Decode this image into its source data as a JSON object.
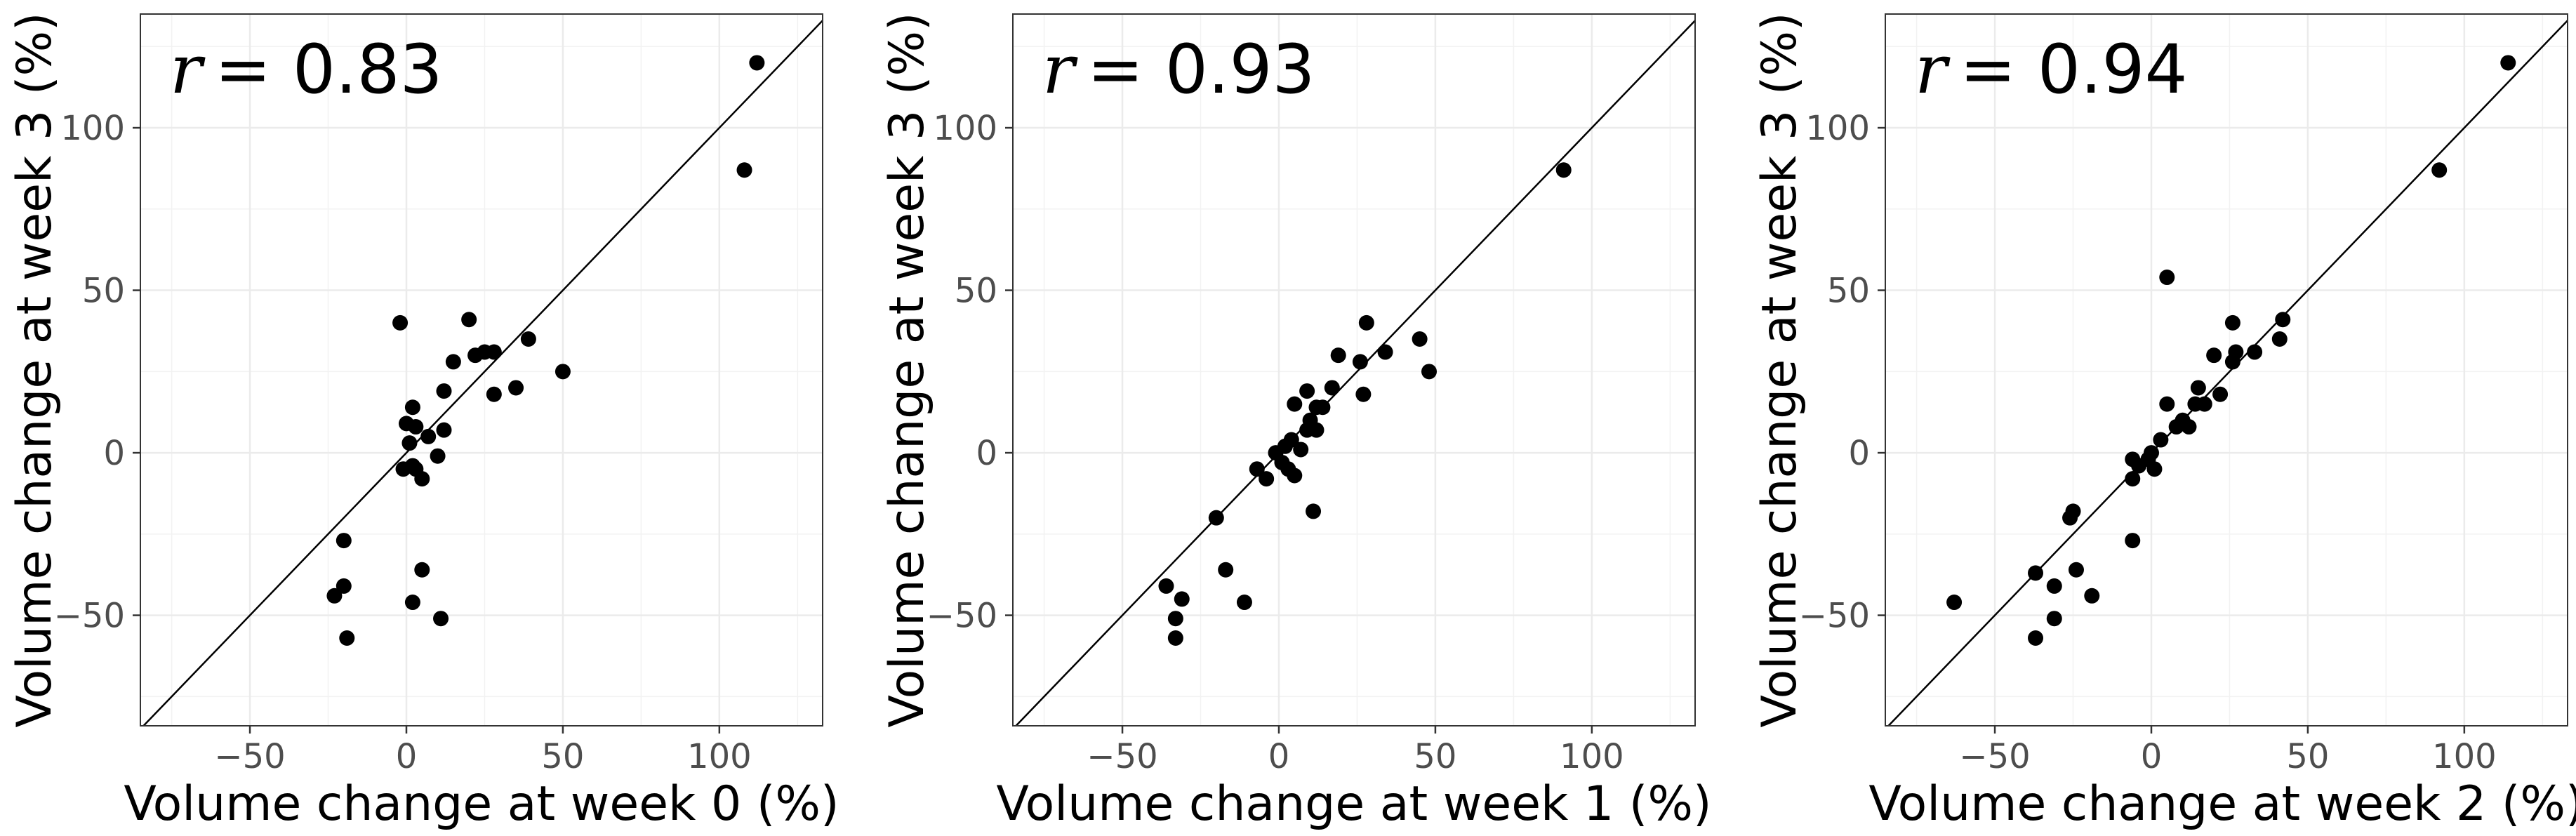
{
  "chart_data": [
    {
      "type": "scatter",
      "xlabel": "Volume change at week 0 (%)",
      "ylabel": "Volume change at week 3 (%)",
      "annotation_symbol": "r",
      "annotation_value": "= 0.83",
      "xlim": [
        -85,
        133
      ],
      "ylim": [
        -84,
        135
      ],
      "xticks": [
        -50,
        0,
        50,
        100
      ],
      "yticks": [
        -50,
        0,
        50,
        100
      ],
      "xtick_labels": [
        "−50",
        "0",
        "50",
        "100"
      ],
      "ytick_labels": [
        "−50",
        "0",
        "50",
        "100"
      ],
      "identity_line": true,
      "grid": true,
      "points": [
        [
          112,
          120
        ],
        [
          108,
          87
        ],
        [
          -2,
          40
        ],
        [
          20,
          41
        ],
        [
          22,
          30
        ],
        [
          25,
          31
        ],
        [
          15,
          28
        ],
        [
          28,
          31
        ],
        [
          39,
          35
        ],
        [
          35,
          20
        ],
        [
          28,
          18
        ],
        [
          50,
          25
        ],
        [
          12,
          19
        ],
        [
          2,
          14
        ],
        [
          12,
          7
        ],
        [
          3,
          8
        ],
        [
          7,
          5
        ],
        [
          10,
          -1
        ],
        [
          0,
          9
        ],
        [
          1,
          3
        ],
        [
          -1,
          -5
        ],
        [
          2,
          -4
        ],
        [
          3,
          -5
        ],
        [
          5,
          -8
        ],
        [
          -20,
          -27
        ],
        [
          -20,
          -41
        ],
        [
          -23,
          -44
        ],
        [
          -19,
          -57
        ],
        [
          5,
          -36
        ],
        [
          2,
          -46
        ],
        [
          11,
          -51
        ]
      ]
    },
    {
      "type": "scatter",
      "xlabel": "Volume change at week 1 (%)",
      "ylabel": "Volume change at week 3 (%)",
      "annotation_symbol": "r",
      "annotation_value": "= 0.93",
      "xlim": [
        -85,
        133
      ],
      "ylim": [
        -84,
        135
      ],
      "xticks": [
        -50,
        0,
        50,
        100
      ],
      "yticks": [
        -50,
        0,
        50,
        100
      ],
      "xtick_labels": [
        "−50",
        "0",
        "50",
        "100"
      ],
      "ytick_labels": [
        "−50",
        "0",
        "50",
        "100"
      ],
      "identity_line": true,
      "grid": true,
      "points": [
        [
          91,
          87
        ],
        [
          28,
          40
        ],
        [
          45,
          35
        ],
        [
          48,
          25
        ],
        [
          34,
          31
        ],
        [
          19,
          30
        ],
        [
          26,
          28
        ],
        [
          27,
          18
        ],
        [
          9,
          19
        ],
        [
          17,
          20
        ],
        [
          5,
          15
        ],
        [
          12,
          14
        ],
        [
          14,
          14
        ],
        [
          10,
          10
        ],
        [
          9,
          7
        ],
        [
          12,
          7
        ],
        [
          4,
          4
        ],
        [
          2,
          2
        ],
        [
          7,
          1
        ],
        [
          -1,
          0
        ],
        [
          1,
          -3
        ],
        [
          3,
          -5
        ],
        [
          5,
          -7
        ],
        [
          -4,
          -8
        ],
        [
          -7,
          -5
        ],
        [
          11,
          -18
        ],
        [
          -20,
          -20
        ],
        [
          -36,
          -41
        ],
        [
          -31,
          -45
        ],
        [
          -33,
          -51
        ],
        [
          -33,
          -57
        ],
        [
          -17,
          -36
        ],
        [
          -11,
          -46
        ]
      ]
    },
    {
      "type": "scatter",
      "xlabel": "Volume change at week 2 (%)",
      "ylabel": "Volume change at week 3 (%)",
      "annotation_symbol": "r",
      "annotation_value": "= 0.94",
      "xlim": [
        -85,
        133
      ],
      "ylim": [
        -84,
        135
      ],
      "xticks": [
        -50,
        0,
        50,
        100
      ],
      "yticks": [
        -50,
        0,
        50,
        100
      ],
      "xtick_labels": [
        "−50",
        "0",
        "50",
        "100"
      ],
      "ytick_labels": [
        "−50",
        "0",
        "50",
        "100"
      ],
      "identity_line": true,
      "grid": true,
      "points": [
        [
          114,
          120
        ],
        [
          92,
          87
        ],
        [
          5,
          54
        ],
        [
          42,
          41
        ],
        [
          26,
          40
        ],
        [
          41,
          35
        ],
        [
          33,
          31
        ],
        [
          27,
          31
        ],
        [
          26,
          28
        ],
        [
          20,
          30
        ],
        [
          15,
          20
        ],
        [
          22,
          18
        ],
        [
          14,
          15
        ],
        [
          17,
          15
        ],
        [
          5,
          15
        ],
        [
          10,
          10
        ],
        [
          8,
          8
        ],
        [
          12,
          8
        ],
        [
          3,
          4
        ],
        [
          0,
          0
        ],
        [
          -1,
          -2
        ],
        [
          -4,
          -4
        ],
        [
          -6,
          -8
        ],
        [
          1,
          -5
        ],
        [
          -6,
          -2
        ],
        [
          -6,
          -27
        ],
        [
          -25,
          -18
        ],
        [
          -26,
          -20
        ],
        [
          -37,
          -37
        ],
        [
          -31,
          -41
        ],
        [
          -31,
          -51
        ],
        [
          -37,
          -57
        ],
        [
          -24,
          -36
        ],
        [
          -19,
          -44
        ],
        [
          -63,
          -46
        ]
      ]
    }
  ]
}
